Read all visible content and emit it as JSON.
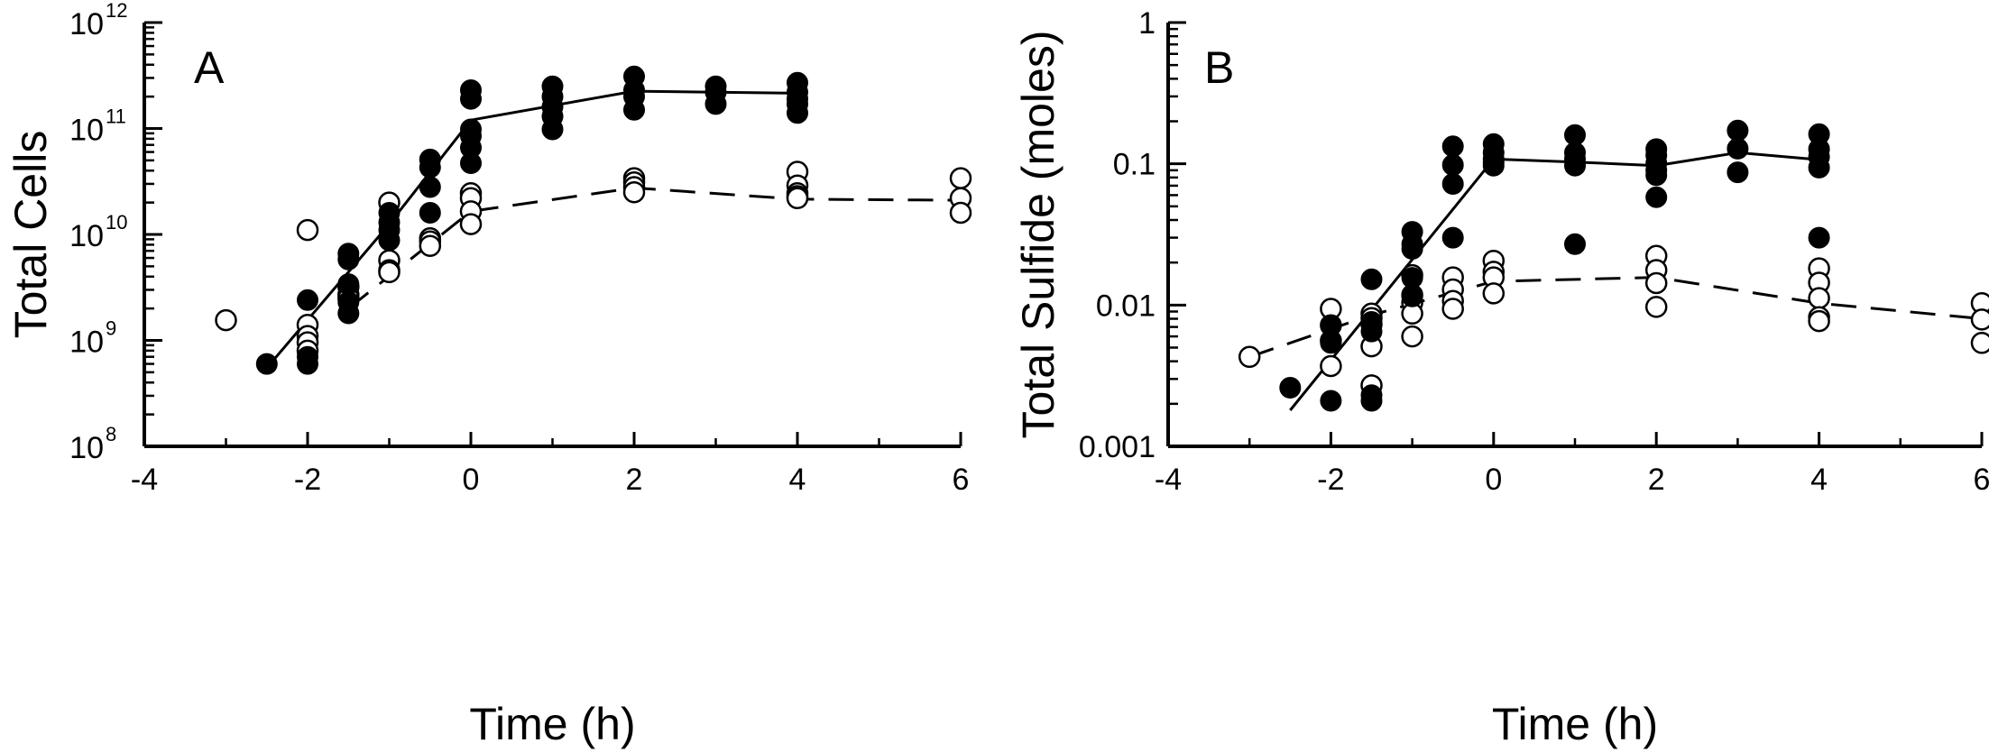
{
  "chart_data": [
    {
      "panel_label": "A",
      "type": "scatter",
      "xlabel": "Time (h)",
      "ylabel": "Total Cells",
      "xlim": [
        -4,
        6
      ],
      "xticks": [
        -4,
        -2,
        0,
        2,
        4,
        6
      ],
      "ylim": [
        100000000.0,
        1000000000000.0
      ],
      "yscale": "log",
      "yticks": [
        {
          "value": 100000000.0,
          "base": "10",
          "exp": "8"
        },
        {
          "value": 1000000000.0,
          "base": "10",
          "exp": "9"
        },
        {
          "value": 10000000000.0,
          "base": "10",
          "exp": "10"
        },
        {
          "value": 100000000000.0,
          "base": "10",
          "exp": "11"
        },
        {
          "value": 1000000000000.0,
          "base": "10",
          "exp": "12"
        }
      ],
      "series": [
        {
          "marker": "filled-circle",
          "points": [
            [
              -2.5,
              600000000.0
            ],
            [
              -2,
              2400000000.0
            ],
            [
              -2,
              700000000.0
            ],
            [
              -2,
              600000000.0
            ],
            [
              -1.5,
              6600000000.0
            ],
            [
              -1.5,
              5800000000.0
            ],
            [
              -1.5,
              3400000000.0
            ],
            [
              -1.5,
              2300000000.0
            ],
            [
              -1.5,
              1800000000.0
            ],
            [
              -1,
              16000000000.0
            ],
            [
              -1,
              13000000000.0
            ],
            [
              -1,
              11000000000.0
            ],
            [
              -1,
              8800000000.0
            ],
            [
              -0.5,
              51000000000.0
            ],
            [
              -0.5,
              43000000000.0
            ],
            [
              -0.5,
              28000000000.0
            ],
            [
              -0.5,
              16000000000.0
            ],
            [
              0,
              230000000000.0
            ],
            [
              0,
              190000000000.0
            ],
            [
              0,
              98000000000.0
            ],
            [
              0,
              85000000000.0
            ],
            [
              0,
              66000000000.0
            ],
            [
              0,
              47000000000.0
            ],
            [
              1,
              250000000000.0
            ],
            [
              1,
              200000000000.0
            ],
            [
              1,
              160000000000.0
            ],
            [
              1,
              130000000000.0
            ],
            [
              1,
              98000000000.0
            ],
            [
              2,
              310000000000.0
            ],
            [
              2,
              230000000000.0
            ],
            [
              2,
              200000000000.0
            ],
            [
              2,
              150000000000.0
            ],
            [
              3,
              250000000000.0
            ],
            [
              3,
              220000000000.0
            ],
            [
              3,
              170000000000.0
            ],
            [
              4,
              270000000000.0
            ],
            [
              4,
              220000000000.0
            ],
            [
              4,
              190000000000.0
            ],
            [
              4,
              170000000000.0
            ],
            [
              4,
              140000000000.0
            ]
          ],
          "line": [
            [
              -2.5,
              550000000.0
            ],
            [
              -1,
              12500000000.0
            ],
            [
              0,
              120000000000.0
            ],
            [
              2,
              225000000000.0
            ],
            [
              4,
              215000000000.0
            ]
          ],
          "line_style": "solid"
        },
        {
          "marker": "open-circle",
          "points": [
            [
              -3,
              1550000000.0
            ],
            [
              -2,
              11000000000.0
            ],
            [
              -2,
              1400000000.0
            ],
            [
              -2,
              1100000000.0
            ],
            [
              -2,
              960000000.0
            ],
            [
              -2,
              800000000.0
            ],
            [
              -1.5,
              3200000000.0
            ],
            [
              -1.5,
              2700000000.0
            ],
            [
              -1.5,
              2500000000.0
            ],
            [
              -1,
              20000000000.0
            ],
            [
              -1,
              5700000000.0
            ],
            [
              -1,
              4600000000.0
            ],
            [
              -1,
              4400000000.0
            ],
            [
              -0.5,
              9200000000.0
            ],
            [
              -0.5,
              8600000000.0
            ],
            [
              -0.5,
              7800000000.0
            ],
            [
              0,
              24500000000.0
            ],
            [
              0,
              22000000000.0
            ],
            [
              0,
              16500000000.0
            ],
            [
              0,
              12500000000.0
            ],
            [
              2,
              34000000000.0
            ],
            [
              2,
              31000000000.0
            ],
            [
              2,
              28000000000.0
            ],
            [
              2,
              25000000000.0
            ],
            [
              4,
              39000000000.0
            ],
            [
              4,
              29000000000.0
            ],
            [
              4,
              24500000000.0
            ],
            [
              4,
              23000000000.0
            ],
            [
              4,
              22000000000.0
            ],
            [
              6,
              34000000000.0
            ],
            [
              6,
              22000000000.0
            ],
            [
              6,
              16000000000.0
            ]
          ],
          "line": [
            [
              -1.5,
              2000000000.0
            ],
            [
              0,
              16500000000.0
            ],
            [
              2,
              27500000000.0
            ],
            [
              4,
              21500000000.0
            ],
            [
              6,
              21000000000.0
            ]
          ],
          "line_style": "dashed"
        }
      ]
    },
    {
      "panel_label": "B",
      "type": "scatter",
      "xlabel": "Time (h)",
      "ylabel": "Total Sulfide (moles)",
      "xlim": [
        -4,
        6
      ],
      "xticks": [
        -4,
        -2,
        0,
        2,
        4,
        6
      ],
      "ylim": [
        0.001,
        1
      ],
      "yscale": "log",
      "yticks": [
        {
          "value": 0.001,
          "label": "0.001"
        },
        {
          "value": 0.01,
          "label": "0.01"
        },
        {
          "value": 0.1,
          "label": "0.1"
        },
        {
          "value": 1,
          "label": "1"
        }
      ],
      "series": [
        {
          "marker": "filled-circle",
          "points": [
            [
              -2.5,
              0.0026
            ],
            [
              -2,
              0.0072
            ],
            [
              -2,
              0.0054
            ],
            [
              -2,
              0.0021
            ],
            [
              -1.5,
              0.0152
            ],
            [
              -1.5,
              0.0076
            ],
            [
              -1.5,
              0.0065
            ],
            [
              -1.5,
              0.0023
            ],
            [
              -1.5,
              0.0021
            ],
            [
              -1,
              0.033
            ],
            [
              -1,
              0.027
            ],
            [
              -1,
              0.025
            ],
            [
              -1,
              0.0156
            ],
            [
              -1,
              0.0115
            ],
            [
              -0.5,
              0.133
            ],
            [
              -0.5,
              0.098
            ],
            [
              -0.5,
              0.072
            ],
            [
              -0.5,
              0.03
            ],
            [
              0,
              0.138
            ],
            [
              0,
              0.12
            ],
            [
              0,
              0.108
            ],
            [
              0,
              0.102
            ],
            [
              0,
              0.097
            ],
            [
              1,
              0.16
            ],
            [
              1,
              0.12
            ],
            [
              1,
              0.108
            ],
            [
              1,
              0.097
            ],
            [
              1,
              0.027
            ],
            [
              2,
              0.127
            ],
            [
              2,
              0.115
            ],
            [
              2,
              0.101
            ],
            [
              2,
              0.09
            ],
            [
              2,
              0.083
            ],
            [
              2,
              0.058
            ],
            [
              3,
              0.172
            ],
            [
              3,
              0.128
            ],
            [
              3,
              0.087
            ],
            [
              4,
              0.162
            ],
            [
              4,
              0.127
            ],
            [
              4,
              0.112
            ],
            [
              4,
              0.094
            ],
            [
              4,
              0.03
            ]
          ],
          "line": [
            [
              -2.5,
              0.0018
            ],
            [
              0,
              0.108
            ],
            [
              1,
              0.103
            ],
            [
              2,
              0.097
            ],
            [
              3,
              0.12
            ],
            [
              4,
              0.107
            ]
          ],
          "line_style": "solid"
        },
        {
          "marker": "open-circle",
          "points": [
            [
              -3,
              0.0043
            ],
            [
              -2,
              0.0094
            ],
            [
              -2,
              0.0072
            ],
            [
              -2,
              0.0056
            ],
            [
              -2,
              0.0037
            ],
            [
              -1.5,
              0.0087
            ],
            [
              -1.5,
              0.0081
            ],
            [
              -1.5,
              0.0073
            ],
            [
              -1.5,
              0.0051
            ],
            [
              -1.5,
              0.0027
            ],
            [
              -1,
              0.0163
            ],
            [
              -1,
              0.0118
            ],
            [
              -1,
              0.0104
            ],
            [
              -1,
              0.0087
            ],
            [
              -1,
              0.006
            ],
            [
              -0.5,
              0.0157
            ],
            [
              -0.5,
              0.0129
            ],
            [
              -0.5,
              0.0107
            ],
            [
              -0.5,
              0.0094
            ],
            [
              0,
              0.0206
            ],
            [
              0,
              0.0172
            ],
            [
              0,
              0.0157
            ],
            [
              0,
              0.0121
            ],
            [
              2,
              0.0223
            ],
            [
              2,
              0.0177
            ],
            [
              2,
              0.0143
            ],
            [
              2,
              0.0097
            ],
            [
              4,
              0.0182
            ],
            [
              4,
              0.0144
            ],
            [
              4,
              0.0112
            ],
            [
              4,
              0.0082
            ],
            [
              4,
              0.0077
            ],
            [
              6,
              0.0103
            ],
            [
              6,
              0.0079
            ],
            [
              6,
              0.0054
            ]
          ],
          "line": [
            [
              -3,
              0.0043
            ],
            [
              -1.5,
              0.0085
            ],
            [
              0,
              0.0147
            ],
            [
              2,
              0.0157
            ],
            [
              4,
              0.0103
            ],
            [
              6,
              0.008
            ]
          ],
          "line_style": "dashed"
        }
      ]
    }
  ]
}
